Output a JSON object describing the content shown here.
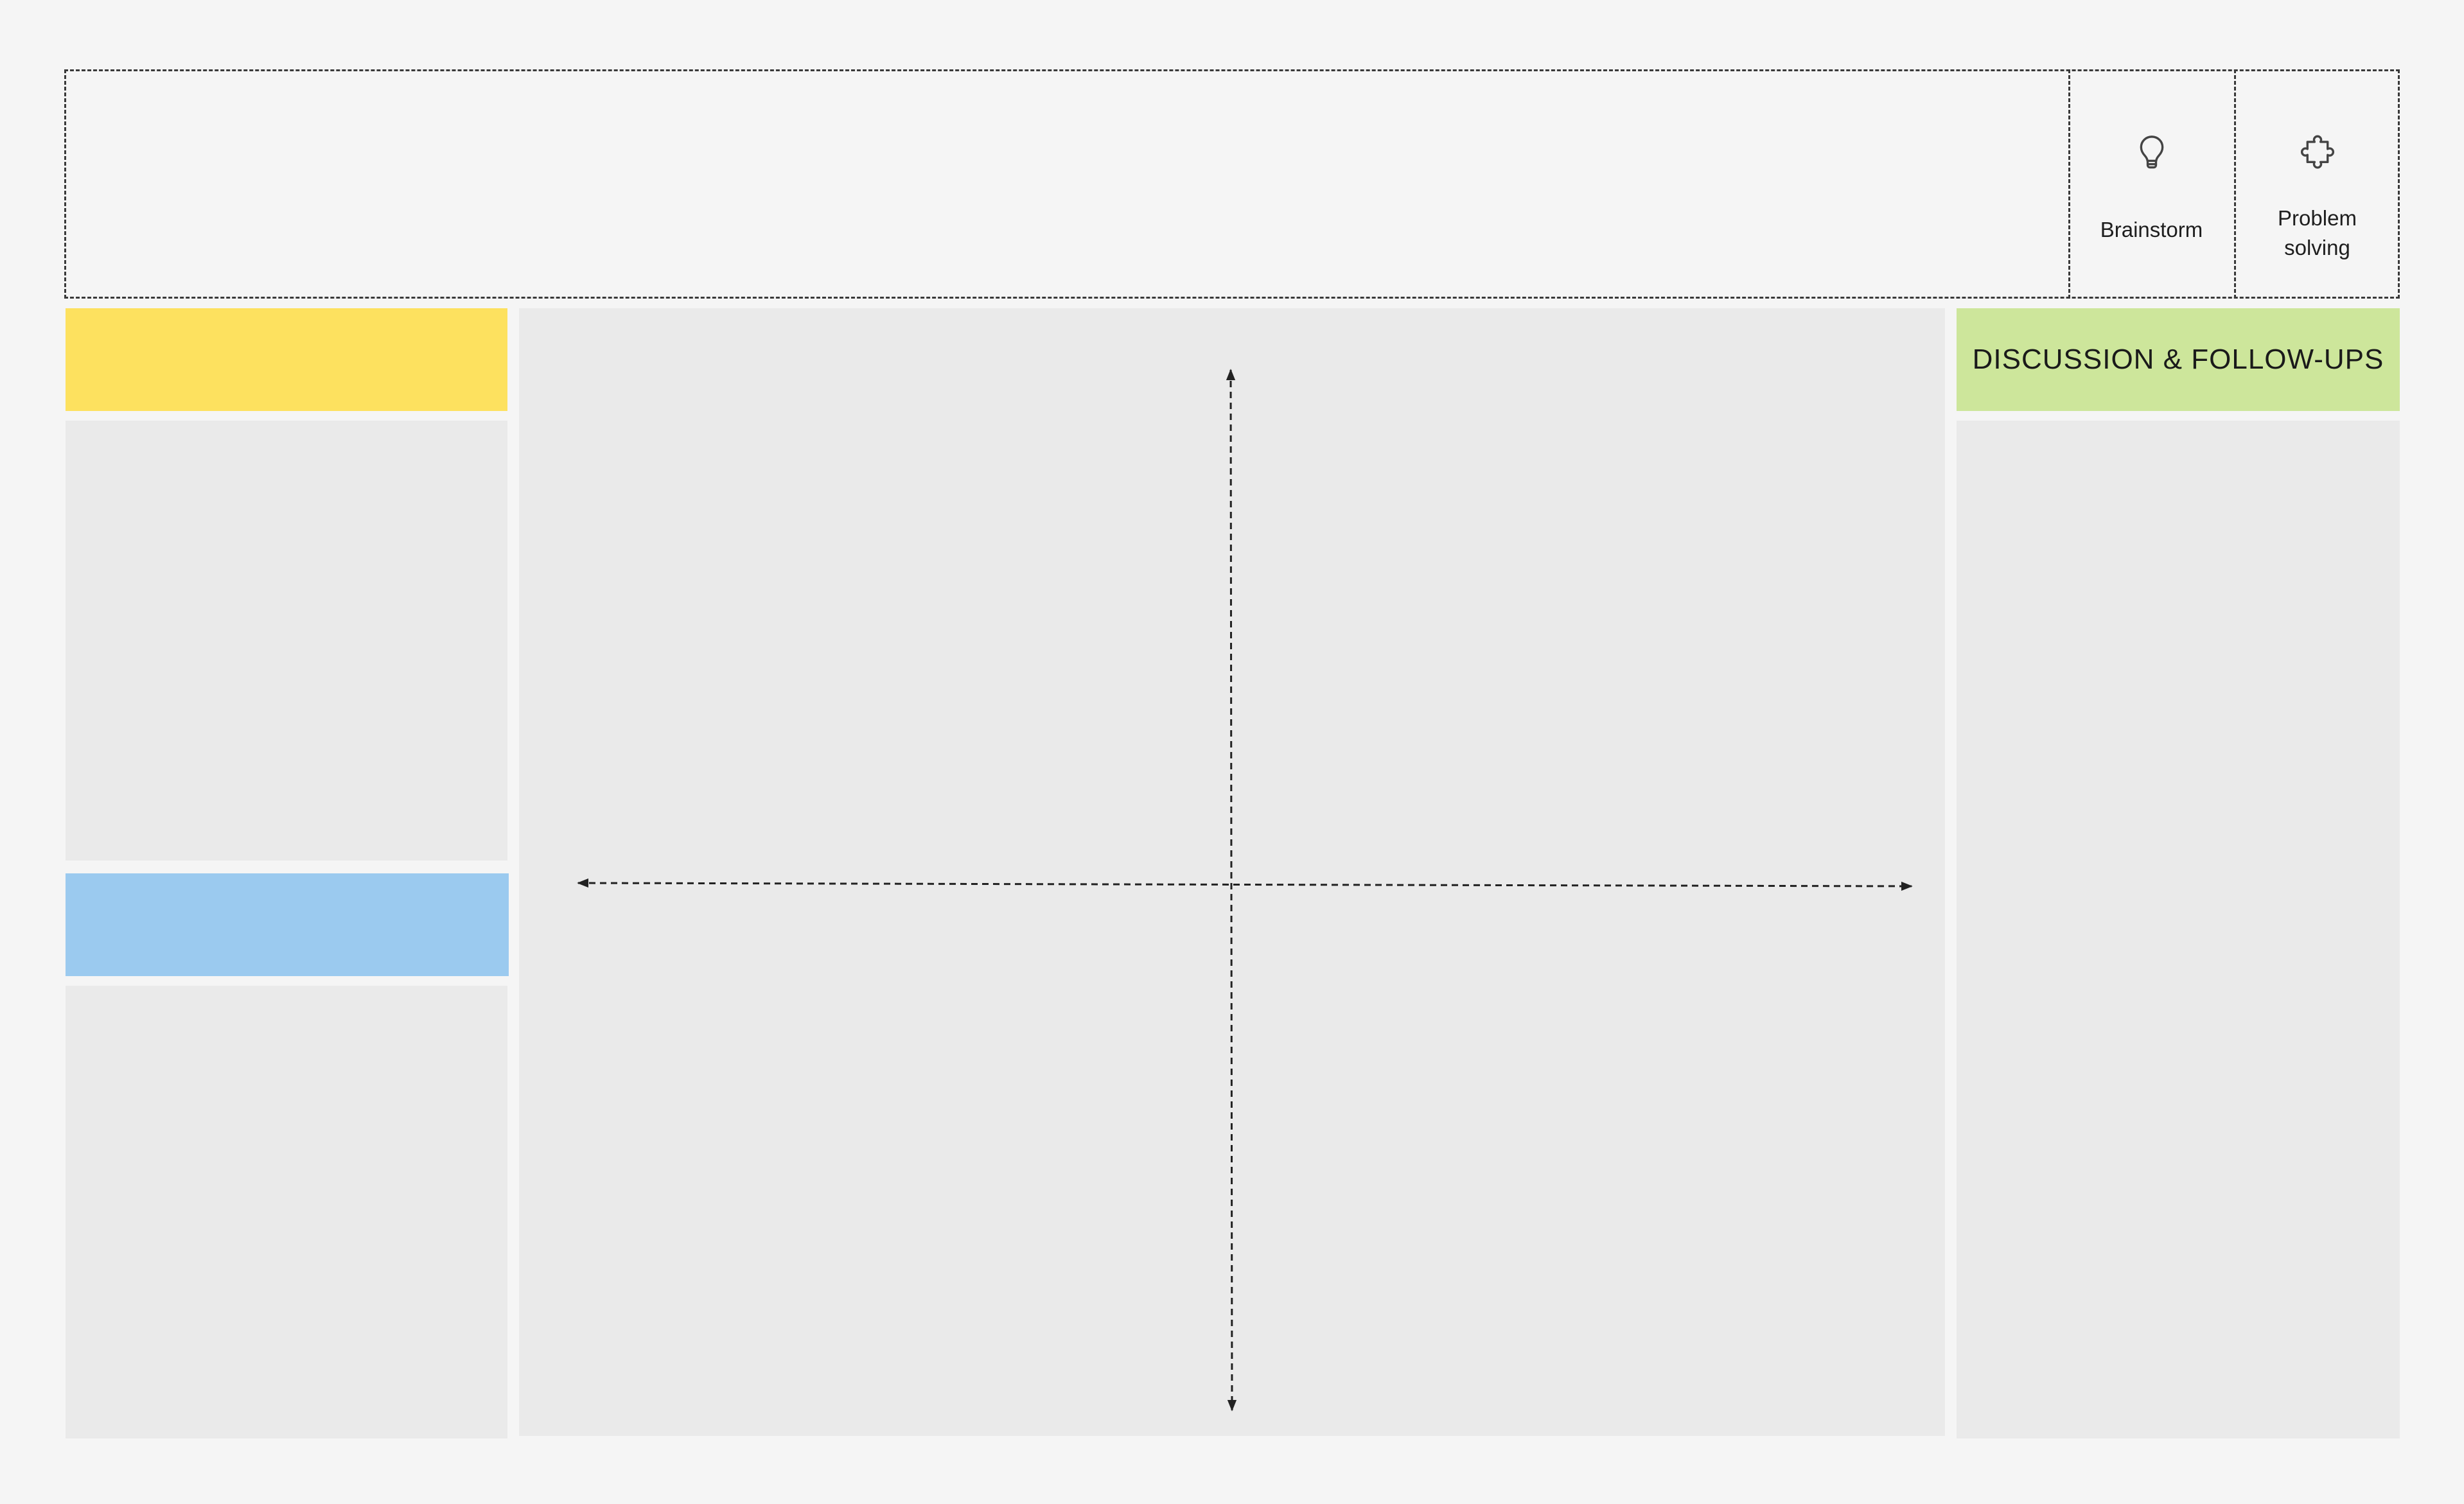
{
  "header": {
    "title": "",
    "tags": [
      {
        "label": "Brainstorm",
        "icon": "lightbulb-icon"
      },
      {
        "label": "Problem\nsolving",
        "icon": "puzzle-icon"
      }
    ]
  },
  "left_column": {
    "top_section": {
      "header_label": "",
      "color": "#fde15f"
    },
    "bottom_section": {
      "header_label": "",
      "color": "#9bcaef"
    }
  },
  "center": {
    "axes": {
      "x_label": "",
      "y_label": ""
    }
  },
  "right_column": {
    "header_label": "DISCUSSION & FOLLOW-UPS",
    "color": "#cde69b"
  }
}
